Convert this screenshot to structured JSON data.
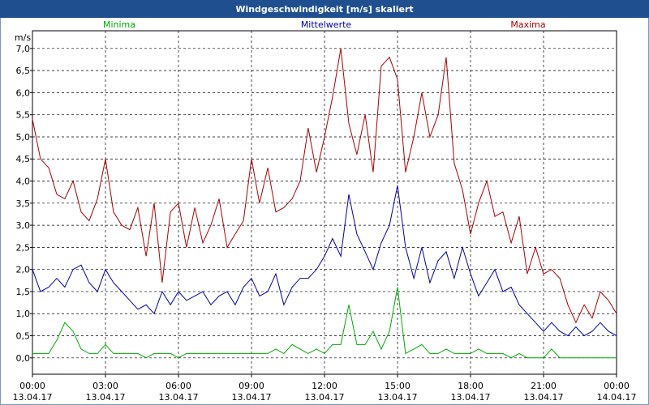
{
  "chart_data": {
    "type": "line",
    "title": "Windgeschwindigkeit [m/s] skaliert",
    "y_label": "m/s",
    "x": [
      0,
      0.33,
      0.67,
      1,
      1.33,
      1.67,
      2,
      2.33,
      2.67,
      3,
      3.33,
      3.67,
      4,
      4.33,
      4.67,
      5,
      5.33,
      5.67,
      6,
      6.33,
      6.67,
      7,
      7.33,
      7.67,
      8,
      8.33,
      8.67,
      9,
      9.33,
      9.67,
      10,
      10.33,
      10.67,
      11,
      11.33,
      11.67,
      12,
      12.33,
      12.67,
      13,
      13.33,
      13.67,
      14,
      14.33,
      14.67,
      15,
      15.33,
      15.67,
      16,
      16.33,
      16.67,
      17,
      17.33,
      17.67,
      18,
      18.33,
      18.67,
      19,
      19.33,
      19.67,
      20,
      20.33,
      20.67,
      21,
      21.33,
      21.67,
      22,
      22.33,
      22.67,
      23,
      23.33,
      23.67,
      24
    ],
    "series": [
      {
        "name": "Minima",
        "color": "#00aa00",
        "values": [
          0.1,
          0.1,
          0.1,
          0.4,
          0.8,
          0.6,
          0.2,
          0.1,
          0.1,
          0.3,
          0.1,
          0.1,
          0.1,
          0.1,
          0.0,
          0.1,
          0.1,
          0.1,
          0.0,
          0.1,
          0.1,
          0.1,
          0.1,
          0.1,
          0.1,
          0.1,
          0.1,
          0.1,
          0.1,
          0.1,
          0.2,
          0.1,
          0.3,
          0.2,
          0.1,
          0.2,
          0.1,
          0.3,
          0.3,
          1.2,
          0.3,
          0.3,
          0.6,
          0.2,
          0.6,
          1.6,
          0.1,
          0.2,
          0.3,
          0.1,
          0.1,
          0.2,
          0.1,
          0.1,
          0.1,
          0.2,
          0.1,
          0.1,
          0.1,
          0.0,
          0.1,
          0.0,
          0.0,
          0.0,
          0.2,
          0.0,
          0.0,
          0.0,
          0.0,
          0.0,
          0.0,
          0.0,
          0.0
        ]
      },
      {
        "name": "Mittelwerte",
        "color": "#0000aa",
        "values": [
          2.0,
          1.5,
          1.6,
          1.8,
          1.6,
          2.0,
          2.1,
          1.7,
          1.5,
          2.0,
          1.7,
          1.5,
          1.3,
          1.1,
          1.2,
          1.0,
          1.5,
          1.2,
          1.5,
          1.3,
          1.4,
          1.5,
          1.2,
          1.4,
          1.5,
          1.2,
          1.6,
          1.8,
          1.4,
          1.5,
          1.9,
          1.2,
          1.6,
          1.8,
          1.8,
          2.0,
          2.3,
          2.7,
          2.3,
          3.7,
          2.8,
          2.4,
          2.0,
          2.6,
          3.0,
          3.9,
          2.5,
          1.8,
          2.5,
          1.7,
          2.2,
          2.4,
          1.8,
          2.5,
          1.9,
          1.4,
          1.7,
          2.0,
          1.5,
          1.6,
          1.2,
          1.0,
          0.8,
          0.6,
          0.8,
          0.6,
          0.5,
          0.7,
          0.5,
          0.6,
          0.8,
          0.6,
          0.5
        ]
      },
      {
        "name": "Maxima",
        "color": "#aa0000",
        "values": [
          5.4,
          4.5,
          4.3,
          3.7,
          3.6,
          4.0,
          3.3,
          3.1,
          3.6,
          4.5,
          3.3,
          3.0,
          2.9,
          3.4,
          2.3,
          3.5,
          1.7,
          3.3,
          3.5,
          2.5,
          3.4,
          2.6,
          3.0,
          3.6,
          2.5,
          2.8,
          3.1,
          4.5,
          3.5,
          4.3,
          3.3,
          3.4,
          3.6,
          4.0,
          5.2,
          4.2,
          5.0,
          5.9,
          7.0,
          5.3,
          4.6,
          5.5,
          4.2,
          6.6,
          6.8,
          6.3,
          4.2,
          5.0,
          6.0,
          5.0,
          5.5,
          6.8,
          4.4,
          3.8,
          2.8,
          3.5,
          4.0,
          3.2,
          3.3,
          2.6,
          3.2,
          1.9,
          2.5,
          1.9,
          2.0,
          1.8,
          1.2,
          0.8,
          1.2,
          0.9,
          1.5,
          1.3,
          1.0
        ]
      }
    ],
    "xlim": [
      0,
      24
    ],
    "xticks": [
      {
        "value": 0,
        "label": "00:00",
        "date": "13.04.17"
      },
      {
        "value": 3,
        "label": "03:00",
        "date": "13.04.17"
      },
      {
        "value": 6,
        "label": "06:00",
        "date": "13.04.17"
      },
      {
        "value": 9,
        "label": "09:00",
        "date": "13.04.17"
      },
      {
        "value": 12,
        "label": "12:00",
        "date": "13.04.17"
      },
      {
        "value": 15,
        "label": "15:00",
        "date": "13.04.17"
      },
      {
        "value": 18,
        "label": "18:00",
        "date": "13.04.17"
      },
      {
        "value": 21,
        "label": "21:00",
        "date": "13.04.17"
      },
      {
        "value": 24,
        "label": "00:00",
        "date": "14.04.17"
      }
    ],
    "ylim": [
      -0.37,
      7.4
    ],
    "yticks": [
      {
        "value": 0,
        "label": "0,0"
      },
      {
        "value": 0.5,
        "label": "0,5"
      },
      {
        "value": 1,
        "label": "1,0"
      },
      {
        "value": 1.5,
        "label": "1,5"
      },
      {
        "value": 2,
        "label": "2,0"
      },
      {
        "value": 2.5,
        "label": "2,5"
      },
      {
        "value": 3,
        "label": "3,0"
      },
      {
        "value": 3.5,
        "label": "3,5"
      },
      {
        "value": 4,
        "label": "4,0"
      },
      {
        "value": 4.5,
        "label": "4,5"
      },
      {
        "value": 5,
        "label": "5,0"
      },
      {
        "value": 5.5,
        "label": "5,5"
      },
      {
        "value": 6,
        "label": "6,0"
      },
      {
        "value": 6.5,
        "label": "6,5"
      },
      {
        "value": 7,
        "label": "7,0"
      }
    ],
    "grid": true
  }
}
